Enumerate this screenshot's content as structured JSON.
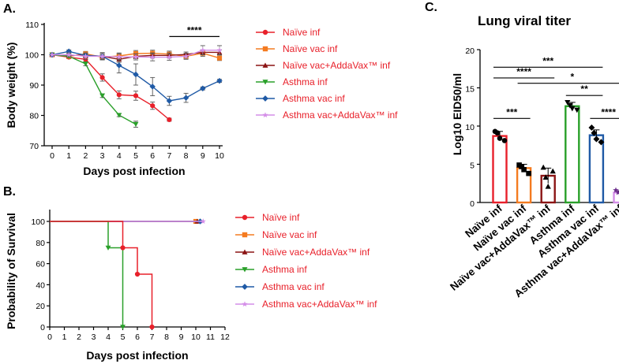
{
  "panels": {
    "a": "A.",
    "b": "B.",
    "c": "C."
  },
  "colors": {
    "naive_inf": "#e8202a",
    "naive_vac_inf": "#f47b20",
    "naive_vac_adda": "#8b1414",
    "asthma_inf": "#2aa02a",
    "asthma_vac_inf": "#1f5aa6",
    "asthma_vac_adda": "#d48ee8",
    "legend_text": "#e8202a"
  },
  "legend": [
    {
      "key": "naive_inf",
      "label": "Naïve inf",
      "marker": "circle"
    },
    {
      "key": "naive_vac_inf",
      "label": "Naïve vac inf",
      "marker": "square"
    },
    {
      "key": "naive_vac_adda",
      "label": "Naïve vac+AddaVax™ inf",
      "marker": "triangle-up"
    },
    {
      "key": "asthma_inf",
      "label": "Asthma inf",
      "marker": "triangle-down"
    },
    {
      "key": "asthma_vac_inf",
      "label": "Asthma vac inf",
      "marker": "diamond"
    },
    {
      "key": "asthma_vac_adda",
      "label": "Asthma vac+AddaVax™ inf",
      "marker": "star"
    }
  ],
  "chart_data": [
    {
      "id": "A",
      "type": "line",
      "title": "",
      "xlabel": "Days post infection",
      "ylabel": "Body weight (%)",
      "xlim": [
        0,
        10
      ],
      "ylim": [
        70,
        110
      ],
      "xticks": [
        0,
        1,
        2,
        3,
        4,
        5,
        6,
        7,
        8,
        9,
        10
      ],
      "yticks": [
        70,
        80,
        90,
        100,
        110
      ],
      "significance": {
        "label": "****",
        "x_from": 7,
        "x_to": 10,
        "y": 106
      },
      "series": [
        {
          "key": "naive_inf",
          "name": "Naïve inf",
          "x": [
            0,
            1,
            2,
            3,
            4,
            5,
            6,
            7
          ],
          "values": [
            100,
            99.2,
            98.5,
            92.5,
            86.8,
            86.5,
            83.2,
            78.6
          ],
          "err": [
            0.3,
            0.5,
            0.8,
            1.2,
            1.3,
            1.5,
            1.2,
            0.5
          ]
        },
        {
          "key": "naive_vac_inf",
          "name": "Naïve vac inf",
          "x": [
            0,
            1,
            2,
            3,
            4,
            5,
            6,
            7,
            8,
            9,
            10
          ],
          "values": [
            100,
            99.5,
            100.3,
            99.2,
            99.6,
            100.4,
            100.5,
            100.2,
            99.5,
            100.5,
            98.9
          ],
          "err": [
            0.3,
            0.5,
            0.8,
            0.8,
            1,
            1,
            1,
            1,
            0.8,
            1,
            0.8
          ]
        },
        {
          "key": "naive_vac_adda",
          "name": "Naïve vac+AddaVax™ inf",
          "x": [
            0,
            1,
            2,
            3,
            4,
            5,
            6,
            7,
            8,
            9,
            10
          ],
          "values": [
            100,
            99.8,
            99.8,
            99.5,
            98.5,
            99.5,
            99.8,
            99.8,
            100.1,
            100.8,
            100.8
          ],
          "err": [
            0.3,
            0.5,
            0.6,
            0.6,
            1,
            0.8,
            0.8,
            0.8,
            0.8,
            0.8,
            0.8
          ]
        },
        {
          "key": "asthma_inf",
          "name": "Asthma inf",
          "x": [
            0,
            1,
            2,
            3,
            4,
            5
          ],
          "values": [
            100,
            99.5,
            97,
            86.5,
            80.1,
            77.1
          ],
          "err": [
            0.3,
            0.4,
            0.6,
            0.6,
            0.5,
            1
          ]
        },
        {
          "key": "asthma_vac_inf",
          "name": "Asthma vac inf",
          "x": [
            0,
            1,
            2,
            3,
            4,
            5,
            6,
            7,
            8,
            9,
            10
          ],
          "values": [
            100,
            101.1,
            99.8,
            99.5,
            96.5,
            93.5,
            89.5,
            84.8,
            85.8,
            88.9,
            91.4
          ],
          "err": [
            0.3,
            0.5,
            0.8,
            1.2,
            2.5,
            3.5,
            3,
            1.5,
            1.5,
            0.5,
            0.5
          ]
        },
        {
          "key": "asthma_vac_adda",
          "name": "Asthma vac+AddaVax™ inf",
          "x": [
            0,
            1,
            2,
            3,
            4,
            5,
            6,
            7,
            8,
            9,
            10
          ],
          "values": [
            100,
            100,
            99.5,
            99.5,
            99.3,
            99.3,
            99.2,
            99.2,
            99.5,
            101.5,
            101.5
          ],
          "err": [
            0.3,
            0.6,
            1,
            1,
            1,
            1,
            1.2,
            1,
            1,
            1.5,
            1.5
          ]
        }
      ]
    },
    {
      "id": "B",
      "type": "line",
      "step": true,
      "title": "",
      "xlabel": "Days post infection",
      "ylabel": "Probability of Survival",
      "xlim": [
        0,
        12
      ],
      "ylim": [
        0,
        100
      ],
      "xticks": [
        0,
        1,
        2,
        3,
        4,
        5,
        6,
        7,
        8,
        9,
        10,
        11,
        12
      ],
      "yticks": [
        0,
        20,
        40,
        60,
        80,
        100
      ],
      "series": [
        {
          "key": "naive_inf",
          "name": "Naïve inf",
          "x": [
            0,
            5,
            6,
            7
          ],
          "values": [
            100,
            75,
            50,
            0
          ]
        },
        {
          "key": "naive_vac_inf",
          "name": "Naïve vac inf",
          "x": [
            0,
            10
          ],
          "values": [
            100,
            100
          ]
        },
        {
          "key": "naive_vac_adda",
          "name": "Naïve vac+AddaVax™ inf",
          "x": [
            0,
            10.1
          ],
          "values": [
            100,
            100
          ]
        },
        {
          "key": "asthma_inf",
          "name": "Asthma inf",
          "x": [
            0,
            4,
            5
          ],
          "values": [
            100,
            75,
            0
          ]
        },
        {
          "key": "asthma_vac_inf",
          "name": "Asthma vac inf",
          "x": [
            0,
            10.3
          ],
          "values": [
            100,
            100
          ]
        },
        {
          "key": "asthma_vac_adda",
          "name": "Asthma vac+AddaVax™ inf",
          "x": [
            0,
            10.5
          ],
          "values": [
            100,
            100
          ]
        }
      ]
    },
    {
      "id": "C",
      "type": "bar",
      "title": "Lung viral titer",
      "xlabel": "",
      "ylabel": "Log10 EID50/ml",
      "ylim": [
        0,
        20
      ],
      "yticks": [
        0,
        5,
        10,
        15,
        20
      ],
      "categories": [
        "Naïve inf",
        "Naïve vac inf",
        "Naïve vac+AddaVax™ inf",
        "Asthma inf",
        "Asthma vac inf",
        "Asthma vac+AddaVax™ inf"
      ],
      "keys": [
        "naive_inf",
        "naive_vac_inf",
        "naive_vac_adda",
        "asthma_inf",
        "asthma_vac_inf",
        "asthma_vac_adda"
      ],
      "values": [
        8.7,
        4.5,
        3.5,
        12.6,
        8.8,
        1.3
      ],
      "err": [
        0.6,
        0.5,
        1.0,
        0.5,
        0.7,
        0.2
      ],
      "points": [
        [
          9.3,
          8.4,
          8.1,
          9.1
        ],
        [
          4.9,
          4.3,
          3.8,
          4.7
        ],
        [
          4.6,
          2.1,
          4.1,
          3.3
        ],
        [
          13.1,
          12.3,
          12.1,
          12.7
        ],
        [
          9.8,
          8.3,
          7.9,
          9.1
        ],
        [
          1.6,
          1.2,
          1.1,
          1.3
        ]
      ],
      "significance": [
        {
          "from": 0,
          "to": 1,
          "y": 11.0,
          "label": "***"
        },
        {
          "from": 0,
          "to": 2,
          "y": 16.3,
          "label": "****"
        },
        {
          "from": 0,
          "to": 4,
          "y": 17.7,
          "label": "***"
        },
        {
          "from": 1,
          "to": 5,
          "y": 15.6,
          "label": "*"
        },
        {
          "from": 3,
          "to": 4,
          "y": 14.0,
          "label": "**"
        },
        {
          "from": 4,
          "to": 5,
          "y": 11.0,
          "label": "****"
        }
      ]
    }
  ]
}
